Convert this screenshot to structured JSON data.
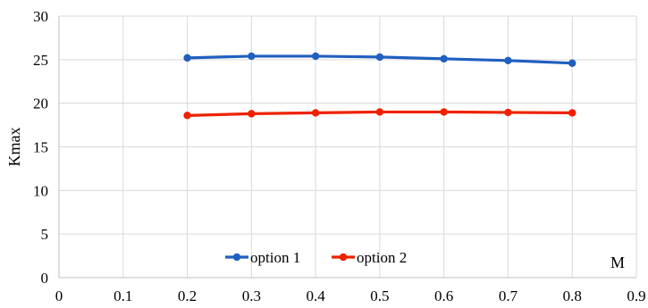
{
  "chart_data": {
    "type": "line",
    "title": "",
    "xlabel": "M",
    "ylabel": "Kmax",
    "xlim": [
      0,
      0.9
    ],
    "ylim": [
      0,
      30
    ],
    "x_ticks": [
      "0",
      "0.1",
      "0.2",
      "0.3",
      "0.4",
      "0.5",
      "0.6",
      "0.7",
      "0.8",
      "0.9"
    ],
    "y_ticks": [
      "0",
      "5",
      "10",
      "15",
      "20",
      "25",
      "30"
    ],
    "grid": true,
    "legend_position": "bottom-center",
    "series": [
      {
        "name": "option 1",
        "color": "#1f5fbf",
        "x": [
          0.2,
          0.3,
          0.4,
          0.5,
          0.6,
          0.7,
          0.8
        ],
        "y": [
          25.2,
          25.4,
          25.4,
          25.3,
          25.1,
          24.9,
          24.6
        ]
      },
      {
        "name": "option 2",
        "color": "#ee2200",
        "x": [
          0.2,
          0.3,
          0.4,
          0.5,
          0.6,
          0.7,
          0.8
        ],
        "y": [
          18.6,
          18.8,
          18.9,
          19.0,
          19.0,
          18.95,
          18.9
        ]
      }
    ]
  }
}
